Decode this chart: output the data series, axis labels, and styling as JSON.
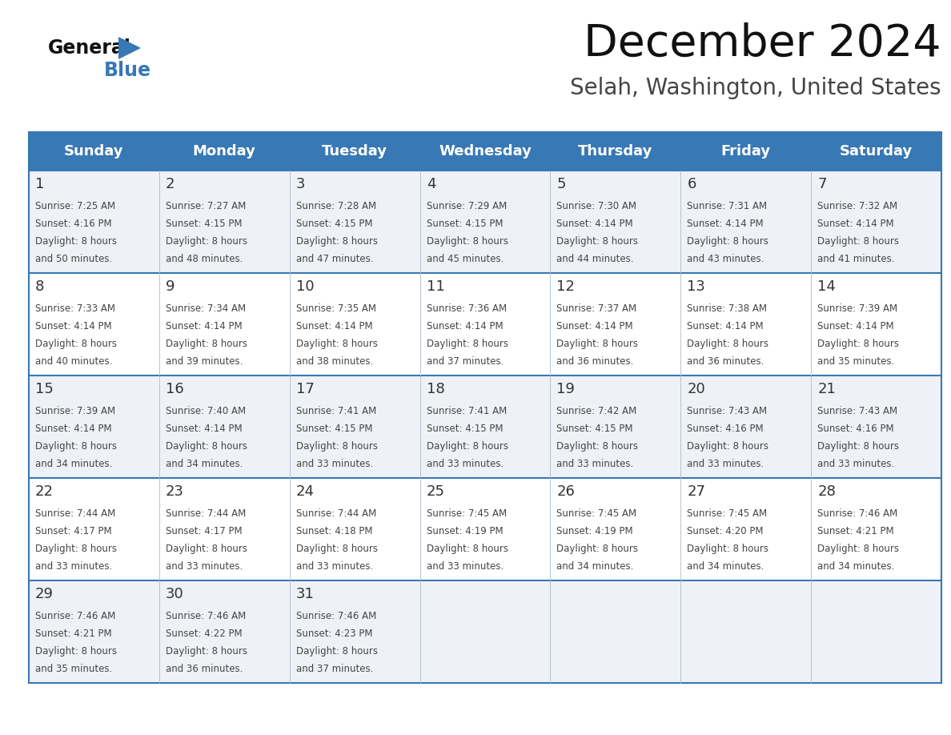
{
  "title": "December 2024",
  "subtitle": "Selah, Washington, United States",
  "days_of_week": [
    "Sunday",
    "Monday",
    "Tuesday",
    "Wednesday",
    "Thursday",
    "Friday",
    "Saturday"
  ],
  "header_bg_color": "#3878b4",
  "header_text_color": "#ffffff",
  "row_bg_light": "#eef2f7",
  "row_bg_white": "#ffffff",
  "cell_text_color": "#444444",
  "day_num_color": "#333333",
  "border_color": "#3878b4",
  "sep_color": "#aabbcc",
  "calendar_data": [
    [
      {
        "day": 1,
        "sunrise": "7:25 AM",
        "sunset": "4:16 PM",
        "daylight": "8 hours and 50 minutes"
      },
      {
        "day": 2,
        "sunrise": "7:27 AM",
        "sunset": "4:15 PM",
        "daylight": "8 hours and 48 minutes"
      },
      {
        "day": 3,
        "sunrise": "7:28 AM",
        "sunset": "4:15 PM",
        "daylight": "8 hours and 47 minutes"
      },
      {
        "day": 4,
        "sunrise": "7:29 AM",
        "sunset": "4:15 PM",
        "daylight": "8 hours and 45 minutes"
      },
      {
        "day": 5,
        "sunrise": "7:30 AM",
        "sunset": "4:14 PM",
        "daylight": "8 hours and 44 minutes"
      },
      {
        "day": 6,
        "sunrise": "7:31 AM",
        "sunset": "4:14 PM",
        "daylight": "8 hours and 43 minutes"
      },
      {
        "day": 7,
        "sunrise": "7:32 AM",
        "sunset": "4:14 PM",
        "daylight": "8 hours and 41 minutes"
      }
    ],
    [
      {
        "day": 8,
        "sunrise": "7:33 AM",
        "sunset": "4:14 PM",
        "daylight": "8 hours and 40 minutes"
      },
      {
        "day": 9,
        "sunrise": "7:34 AM",
        "sunset": "4:14 PM",
        "daylight": "8 hours and 39 minutes"
      },
      {
        "day": 10,
        "sunrise": "7:35 AM",
        "sunset": "4:14 PM",
        "daylight": "8 hours and 38 minutes"
      },
      {
        "day": 11,
        "sunrise": "7:36 AM",
        "sunset": "4:14 PM",
        "daylight": "8 hours and 37 minutes"
      },
      {
        "day": 12,
        "sunrise": "7:37 AM",
        "sunset": "4:14 PM",
        "daylight": "8 hours and 36 minutes"
      },
      {
        "day": 13,
        "sunrise": "7:38 AM",
        "sunset": "4:14 PM",
        "daylight": "8 hours and 36 minutes"
      },
      {
        "day": 14,
        "sunrise": "7:39 AM",
        "sunset": "4:14 PM",
        "daylight": "8 hours and 35 minutes"
      }
    ],
    [
      {
        "day": 15,
        "sunrise": "7:39 AM",
        "sunset": "4:14 PM",
        "daylight": "8 hours and 34 minutes"
      },
      {
        "day": 16,
        "sunrise": "7:40 AM",
        "sunset": "4:14 PM",
        "daylight": "8 hours and 34 minutes"
      },
      {
        "day": 17,
        "sunrise": "7:41 AM",
        "sunset": "4:15 PM",
        "daylight": "8 hours and 33 minutes"
      },
      {
        "day": 18,
        "sunrise": "7:41 AM",
        "sunset": "4:15 PM",
        "daylight": "8 hours and 33 minutes"
      },
      {
        "day": 19,
        "sunrise": "7:42 AM",
        "sunset": "4:15 PM",
        "daylight": "8 hours and 33 minutes"
      },
      {
        "day": 20,
        "sunrise": "7:43 AM",
        "sunset": "4:16 PM",
        "daylight": "8 hours and 33 minutes"
      },
      {
        "day": 21,
        "sunrise": "7:43 AM",
        "sunset": "4:16 PM",
        "daylight": "8 hours and 33 minutes"
      }
    ],
    [
      {
        "day": 22,
        "sunrise": "7:44 AM",
        "sunset": "4:17 PM",
        "daylight": "8 hours and 33 minutes"
      },
      {
        "day": 23,
        "sunrise": "7:44 AM",
        "sunset": "4:17 PM",
        "daylight": "8 hours and 33 minutes"
      },
      {
        "day": 24,
        "sunrise": "7:44 AM",
        "sunset": "4:18 PM",
        "daylight": "8 hours and 33 minutes"
      },
      {
        "day": 25,
        "sunrise": "7:45 AM",
        "sunset": "4:19 PM",
        "daylight": "8 hours and 33 minutes"
      },
      {
        "day": 26,
        "sunrise": "7:45 AM",
        "sunset": "4:19 PM",
        "daylight": "8 hours and 34 minutes"
      },
      {
        "day": 27,
        "sunrise": "7:45 AM",
        "sunset": "4:20 PM",
        "daylight": "8 hours and 34 minutes"
      },
      {
        "day": 28,
        "sunrise": "7:46 AM",
        "sunset": "4:21 PM",
        "daylight": "8 hours and 34 minutes"
      }
    ],
    [
      {
        "day": 29,
        "sunrise": "7:46 AM",
        "sunset": "4:21 PM",
        "daylight": "8 hours and 35 minutes"
      },
      {
        "day": 30,
        "sunrise": "7:46 AM",
        "sunset": "4:22 PM",
        "daylight": "8 hours and 36 minutes"
      },
      {
        "day": 31,
        "sunrise": "7:46 AM",
        "sunset": "4:23 PM",
        "daylight": "8 hours and 37 minutes"
      },
      null,
      null,
      null,
      null
    ]
  ]
}
